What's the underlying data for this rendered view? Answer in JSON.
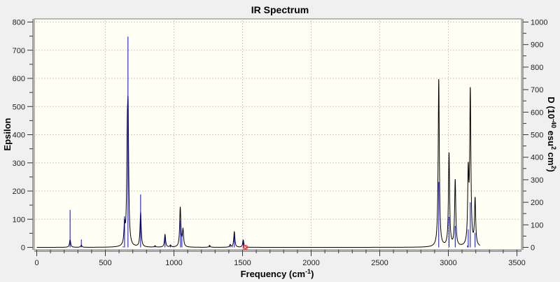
{
  "chart_data": {
    "type": "line",
    "title": "IR Spectrum",
    "xlabel": "Frequency (cm",
    "xlabel_sup": "-1",
    "xlabel_end": ")",
    "ylabel": "Epsilon",
    "y2label_parts": [
      "D (10",
      "-40",
      " esu",
      "2",
      " cm",
      "2",
      ")"
    ],
    "xlim": [
      0,
      3500
    ],
    "ylim": [
      0,
      800
    ],
    "y2lim": [
      0,
      1000
    ],
    "xticks": [
      0,
      500,
      1000,
      1500,
      2000,
      2500,
      3000,
      3500
    ],
    "yticks": [
      0,
      100,
      200,
      300,
      400,
      500,
      600,
      700,
      800
    ],
    "y2ticks": [
      0,
      100,
      200,
      300,
      400,
      500,
      600,
      700,
      800,
      900,
      1000
    ],
    "grid": true,
    "series": [
      {
        "type": "line",
        "color": "#000000",
        "axis": "left",
        "peaks": [
          [
            243,
            27
          ],
          [
            325,
            8
          ],
          [
            640,
            70
          ],
          [
            660,
            300
          ],
          [
            666,
            400
          ],
          [
            757,
            122
          ],
          [
            862,
            5
          ],
          [
            935,
            45
          ],
          [
            975,
            7
          ],
          [
            1046,
            140
          ],
          [
            1066,
            60
          ],
          [
            1260,
            7
          ],
          [
            1410,
            9
          ],
          [
            1440,
            55
          ],
          [
            1505,
            26
          ],
          [
            2930,
            595
          ],
          [
            3005,
            330
          ],
          [
            3050,
            235
          ],
          [
            3145,
            245
          ],
          [
            3160,
            540
          ],
          [
            3195,
            165
          ]
        ]
      },
      {
        "type": "stick",
        "color": "#0000ff",
        "axis": "right",
        "sticks": [
          [
            243,
            166
          ],
          [
            325,
            35
          ],
          [
            630,
            5
          ],
          [
            640,
            138
          ],
          [
            665,
            935
          ],
          [
            757,
            235
          ],
          [
            862,
            6
          ],
          [
            935,
            44
          ],
          [
            975,
            8
          ],
          [
            1048,
            119
          ],
          [
            1058,
            60
          ],
          [
            1260,
            6
          ],
          [
            1410,
            8
          ],
          [
            1425,
            6
          ],
          [
            1440,
            50
          ],
          [
            1505,
            25
          ],
          [
            2930,
            290
          ],
          [
            3005,
            135
          ],
          [
            3050,
            95
          ],
          [
            3140,
            8
          ],
          [
            3145,
            80
          ],
          [
            3160,
            200
          ],
          [
            3195,
            65
          ]
        ]
      }
    ],
    "marker": {
      "x": 1520,
      "y": 0,
      "color": "#ff0000"
    }
  }
}
